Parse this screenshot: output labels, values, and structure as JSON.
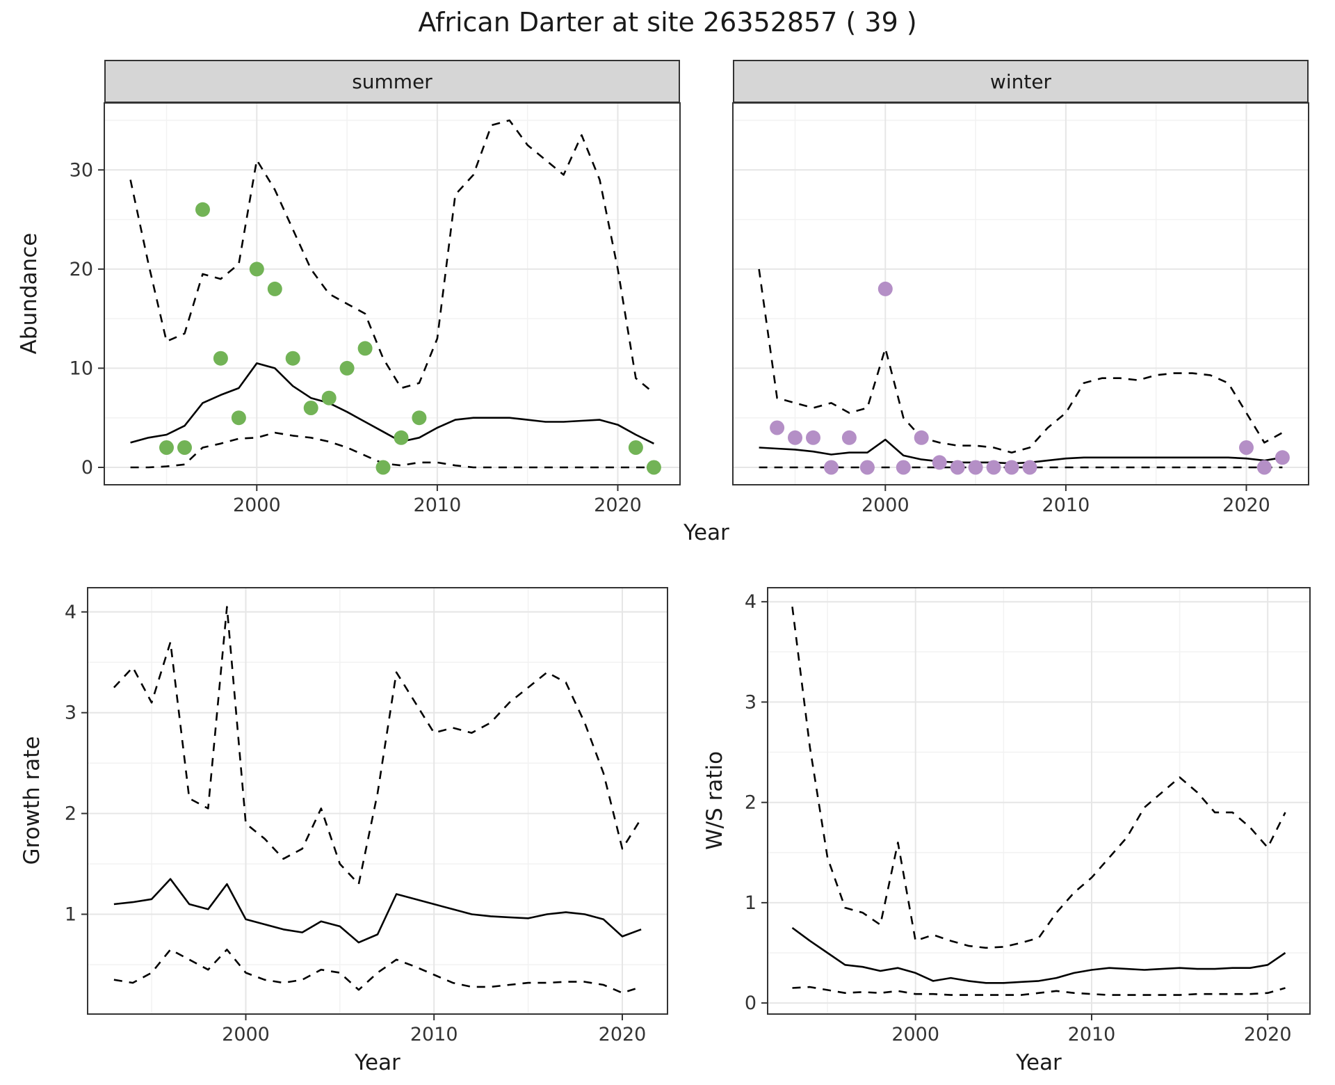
{
  "title": "African Darter at site 26352857 ( 39 )",
  "axis_labels": {
    "abundance": "Abundance",
    "year": "Year",
    "growth_rate": "Growth rate",
    "ws_ratio": "W/S ratio"
  },
  "colors": {
    "summer_points": "#72b356",
    "winter_points": "#b48fc6",
    "line": "#000000",
    "grid_major": "#e6e6e6",
    "grid_minor": "#f2f2f2",
    "strip_bg": "#d6d6d6",
    "panel_border": "#333333",
    "text": "#1a1a1a"
  },
  "chart_data": [
    {
      "id": "abundance-summer",
      "type": "line+scatter",
      "facet_label": "summer",
      "xlabel": "Year",
      "ylabel": "Abundance",
      "x_domain": [
        1991.55,
        2023.45
      ],
      "y_domain": [
        -1.75,
        36.75
      ],
      "x_ticks": [
        2000,
        2010,
        2020
      ],
      "y_ticks": [
        0,
        10,
        20,
        30
      ],
      "x_minor": [
        1995,
        2005,
        2015
      ],
      "y_minor": [
        5,
        15,
        25,
        35
      ],
      "show_y_tick_labels": true,
      "x": [
        1993,
        1994,
        1995,
        1996,
        1997,
        1998,
        1999,
        2000,
        2001,
        2002,
        2003,
        2004,
        2005,
        2006,
        2007,
        2008,
        2009,
        2010,
        2011,
        2012,
        2013,
        2014,
        2015,
        2016,
        2017,
        2018,
        2019,
        2020,
        2021,
        2022
      ],
      "series": [
        {
          "name": "median",
          "style": "solid",
          "values": [
            2.5,
            3.0,
            3.3,
            4.2,
            6.5,
            7.3,
            8.0,
            10.5,
            10.0,
            8.2,
            7.0,
            6.5,
            5.6,
            4.6,
            3.6,
            2.6,
            3.0,
            4.0,
            4.8,
            5.0,
            5.0,
            5.0,
            4.8,
            4.6,
            4.6,
            4.7,
            4.8,
            4.3,
            3.3,
            2.4
          ]
        },
        {
          "name": "upper-ci",
          "style": "dashed",
          "values": [
            29,
            20.5,
            12.7,
            13.5,
            19.5,
            19.0,
            20.5,
            31.0,
            28.0,
            24.0,
            20.0,
            17.5,
            16.5,
            15.5,
            11.0,
            8.0,
            8.5,
            13.0,
            27.5,
            29.5,
            34.5,
            35.0,
            32.5,
            31.0,
            29.5,
            33.5,
            29.0,
            20.0,
            9.0,
            7.5
          ]
        },
        {
          "name": "lower-ci",
          "style": "dashed",
          "values": [
            0,
            0,
            0.1,
            0.3,
            2.0,
            2.4,
            2.9,
            3.0,
            3.5,
            3.2,
            3.0,
            2.6,
            2.0,
            1.2,
            0.4,
            0.2,
            0.5,
            0.5,
            0.2,
            0,
            0,
            0,
            0,
            0,
            0,
            0,
            0,
            0,
            0,
            0
          ]
        }
      ],
      "points": {
        "name": "observed-summer-counts",
        "color": "#72b356",
        "x": [
          1995,
          1996,
          1997,
          1998,
          1999,
          2000,
          2001,
          2002,
          2003,
          2004,
          2005,
          2006,
          2007,
          2008,
          2009,
          2021,
          2022
        ],
        "y": [
          2,
          2,
          26,
          11,
          5,
          20,
          18,
          11,
          6,
          7,
          10,
          12,
          0,
          3,
          5,
          2,
          0
        ]
      }
    },
    {
      "id": "abundance-winter",
      "type": "line+scatter",
      "facet_label": "winter",
      "xlabel": "Year",
      "ylabel": "Abundance",
      "x_domain": [
        1991.55,
        2023.45
      ],
      "y_domain": [
        -1.75,
        36.75
      ],
      "x_ticks": [
        2000,
        2010,
        2020
      ],
      "y_ticks": [
        0,
        10,
        20,
        30
      ],
      "x_minor": [
        1995,
        2005,
        2015
      ],
      "y_minor": [
        5,
        15,
        25,
        35
      ],
      "show_y_tick_labels": false,
      "x": [
        1993,
        1994,
        1995,
        1996,
        1997,
        1998,
        1999,
        2000,
        2001,
        2002,
        2003,
        2004,
        2005,
        2006,
        2007,
        2008,
        2009,
        2010,
        2011,
        2012,
        2013,
        2014,
        2015,
        2016,
        2017,
        2018,
        2019,
        2020,
        2021,
        2022
      ],
      "series": [
        {
          "name": "median",
          "style": "solid",
          "values": [
            2.0,
            1.9,
            1.8,
            1.6,
            1.3,
            1.5,
            1.5,
            2.8,
            1.2,
            0.8,
            0.6,
            0.5,
            0.5,
            0.5,
            0.4,
            0.5,
            0.7,
            0.9,
            1.0,
            1.0,
            1.0,
            1.0,
            1.0,
            1.0,
            1.0,
            1.0,
            1.0,
            0.9,
            0.7,
            1.0
          ]
        },
        {
          "name": "upper-ci",
          "style": "dashed",
          "values": [
            20,
            7.0,
            6.5,
            6.0,
            6.5,
            5.5,
            6.0,
            12.0,
            5.0,
            3.0,
            2.5,
            2.2,
            2.2,
            2.0,
            1.5,
            2.0,
            4.0,
            5.5,
            8.5,
            9.0,
            9.0,
            8.8,
            9.3,
            9.5,
            9.5,
            9.3,
            8.5,
            5.5,
            2.5,
            3.5
          ]
        },
        {
          "name": "lower-ci",
          "style": "dashed",
          "values": [
            0,
            0,
            0,
            0,
            0,
            0,
            0,
            0,
            0,
            0,
            0,
            0,
            0,
            0,
            0,
            0,
            0,
            0,
            0,
            0,
            0,
            0,
            0,
            0,
            0,
            0,
            0,
            0,
            0,
            0
          ]
        }
      ],
      "points": {
        "name": "observed-winter-counts",
        "color": "#b48fc6",
        "x": [
          1994,
          1995,
          1996,
          1997,
          1998,
          1999,
          2000,
          2001,
          2002,
          2003,
          2004,
          2005,
          2006,
          2007,
          2008,
          2020,
          2021,
          2022
        ],
        "y": [
          4,
          3,
          3,
          0,
          3,
          0,
          18,
          0,
          3,
          0.5,
          0,
          0,
          0,
          0,
          0,
          2,
          0,
          1
        ]
      }
    },
    {
      "id": "growth-rate",
      "type": "line",
      "xlabel": "Year",
      "ylabel": "Growth rate",
      "x_domain": [
        1991.6,
        2022.4
      ],
      "y_domain": [
        0.01,
        4.24
      ],
      "x_ticks": [
        2000,
        2010,
        2020
      ],
      "y_ticks": [
        1,
        2,
        3,
        4
      ],
      "x_minor": [
        1995,
        2005,
        2015
      ],
      "y_minor": [
        0.5,
        1.5,
        2.5,
        3.5
      ],
      "show_y_tick_labels": true,
      "x": [
        1993,
        1994,
        1995,
        1996,
        1997,
        1998,
        1999,
        2000,
        2001,
        2002,
        2003,
        2004,
        2005,
        2006,
        2007,
        2008,
        2009,
        2010,
        2011,
        2012,
        2013,
        2014,
        2015,
        2016,
        2017,
        2018,
        2019,
        2020,
        2021
      ],
      "series": [
        {
          "name": "median",
          "style": "solid",
          "values": [
            1.1,
            1.12,
            1.15,
            1.35,
            1.1,
            1.05,
            1.3,
            0.95,
            0.9,
            0.85,
            0.82,
            0.93,
            0.88,
            0.72,
            0.8,
            1.2,
            1.15,
            1.1,
            1.05,
            1.0,
            0.98,
            0.97,
            0.96,
            1.0,
            1.02,
            1.0,
            0.95,
            0.78,
            0.85
          ]
        },
        {
          "name": "upper-ci",
          "style": "dashed",
          "values": [
            3.25,
            3.45,
            3.1,
            3.7,
            2.15,
            2.05,
            4.05,
            1.9,
            1.75,
            1.55,
            1.65,
            2.05,
            1.5,
            1.3,
            2.2,
            3.4,
            3.1,
            2.8,
            2.85,
            2.8,
            2.9,
            3.1,
            3.25,
            3.4,
            3.3,
            2.9,
            2.4,
            1.65,
            1.95
          ]
        },
        {
          "name": "lower-ci",
          "style": "dashed",
          "values": [
            0.35,
            0.32,
            0.42,
            0.65,
            0.55,
            0.45,
            0.65,
            0.42,
            0.35,
            0.32,
            0.35,
            0.45,
            0.42,
            0.25,
            0.42,
            0.55,
            0.48,
            0.4,
            0.32,
            0.28,
            0.28,
            0.3,
            0.32,
            0.32,
            0.33,
            0.33,
            0.3,
            0.22,
            0.28
          ]
        }
      ]
    },
    {
      "id": "ws-ratio",
      "type": "line",
      "xlabel": "Year",
      "ylabel": "W/S ratio",
      "x_domain": [
        1991.6,
        2022.4
      ],
      "y_domain": [
        -0.11,
        4.14
      ],
      "x_ticks": [
        2000,
        2010,
        2020
      ],
      "y_ticks": [
        0,
        1,
        2,
        3,
        4
      ],
      "x_minor": [
        1995,
        2005,
        2015
      ],
      "y_minor": [
        0.5,
        1.5,
        2.5,
        3.5
      ],
      "show_y_tick_labels": true,
      "x": [
        1993,
        1994,
        1995,
        1996,
        1997,
        1998,
        1999,
        2000,
        2001,
        2002,
        2003,
        2004,
        2005,
        2006,
        2007,
        2008,
        2009,
        2010,
        2011,
        2012,
        2013,
        2014,
        2015,
        2016,
        2017,
        2018,
        2019,
        2020,
        2021
      ],
      "series": [
        {
          "name": "median",
          "style": "solid",
          "values": [
            0.75,
            0.62,
            0.5,
            0.38,
            0.36,
            0.32,
            0.35,
            0.3,
            0.22,
            0.25,
            0.22,
            0.2,
            0.2,
            0.21,
            0.22,
            0.25,
            0.3,
            0.33,
            0.35,
            0.34,
            0.33,
            0.34,
            0.35,
            0.34,
            0.34,
            0.35,
            0.35,
            0.38,
            0.5
          ]
        },
        {
          "name": "upper-ci",
          "style": "dashed",
          "values": [
            3.95,
            2.55,
            1.45,
            0.95,
            0.9,
            0.78,
            1.6,
            0.62,
            0.68,
            0.62,
            0.57,
            0.55,
            0.56,
            0.6,
            0.65,
            0.9,
            1.1,
            1.25,
            1.45,
            1.65,
            1.95,
            2.1,
            2.25,
            2.1,
            1.9,
            1.9,
            1.75,
            1.55,
            1.9
          ]
        },
        {
          "name": "lower-ci",
          "style": "dashed",
          "values": [
            0.15,
            0.16,
            0.13,
            0.1,
            0.11,
            0.1,
            0.12,
            0.09,
            0.09,
            0.08,
            0.08,
            0.08,
            0.08,
            0.08,
            0.1,
            0.12,
            0.1,
            0.09,
            0.08,
            0.08,
            0.08,
            0.08,
            0.08,
            0.09,
            0.09,
            0.09,
            0.09,
            0.1,
            0.15
          ]
        }
      ]
    }
  ]
}
